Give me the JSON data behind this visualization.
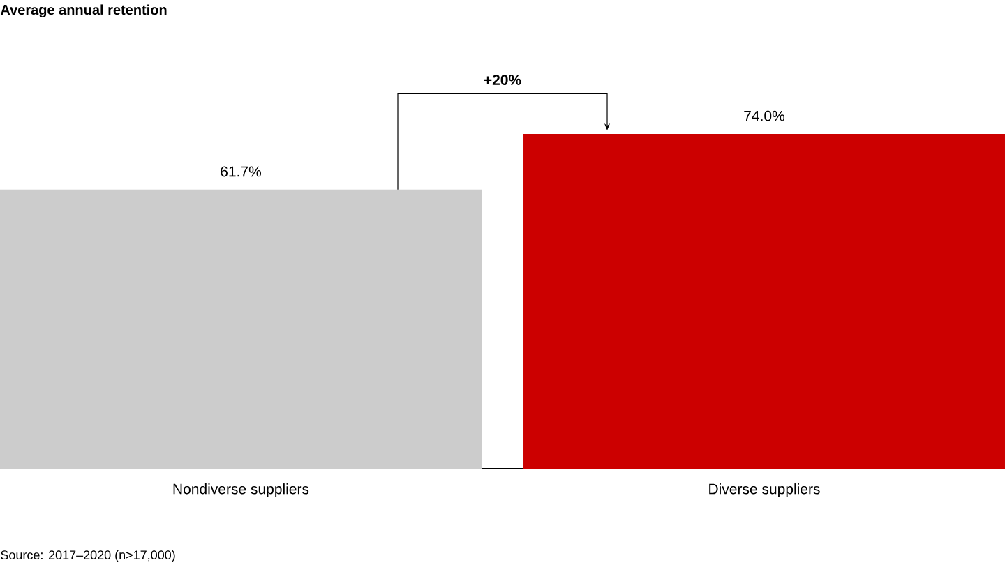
{
  "chart_data": {
    "type": "bar",
    "title": "Average annual retention",
    "categories": [
      "Nondiverse suppliers",
      "Diverse suppliers"
    ],
    "values": [
      61.7,
      74.0
    ],
    "colors": [
      "#cccccc",
      "#cc0000"
    ],
    "value_labels": [
      "61.7%",
      "74.0%"
    ],
    "tick_labels": "x",
    "annotations": [
      "+20%",
      "Source: 2017–2020 (n>17,000)"
    ]
  }
}
